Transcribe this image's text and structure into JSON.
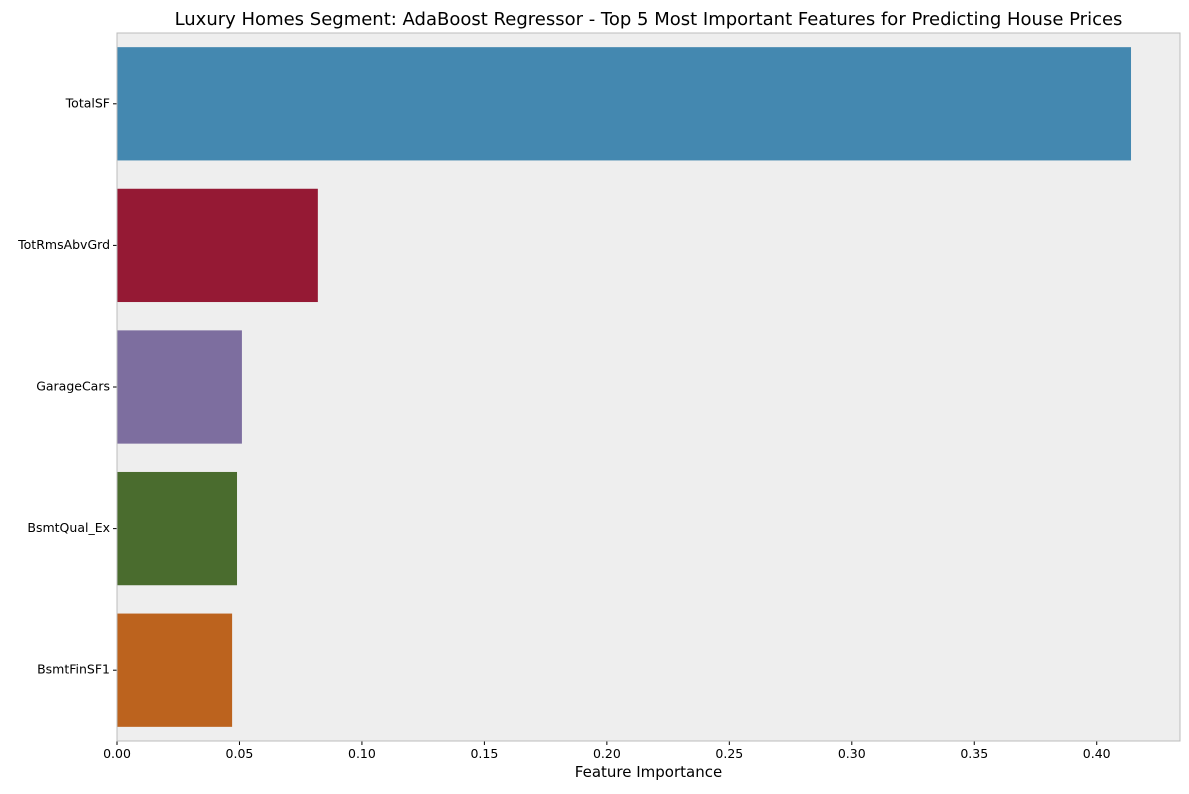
{
  "chart_data": {
    "type": "bar",
    "orientation": "horizontal",
    "title": "Luxury Homes Segment: AdaBoost Regressor - Top 5 Most Important Features for Predicting House Prices",
    "xlabel": "Feature Importance",
    "ylabel": "",
    "categories": [
      "TotalSF",
      "TotRmsAbvGrd",
      "GarageCars",
      "BsmtQual_Ex",
      "BsmtFinSF1"
    ],
    "values": [
      0.414,
      0.082,
      0.051,
      0.049,
      0.047
    ],
    "colors": [
      "#4488b0",
      "#951934",
      "#7d6e9f",
      "#4a6c2e",
      "#bc631e"
    ],
    "xlim": [
      0,
      0.434
    ],
    "xticks": [
      0.0,
      0.05,
      0.1,
      0.15,
      0.2,
      0.25,
      0.3,
      0.35,
      0.4
    ],
    "xtick_labels": [
      "0.00",
      "0.05",
      "0.10",
      "0.15",
      "0.20",
      "0.25",
      "0.30",
      "0.35",
      "0.40"
    ],
    "grid": false,
    "plot_background": "#eeeeee",
    "spine_color": "#bcbcbc"
  }
}
